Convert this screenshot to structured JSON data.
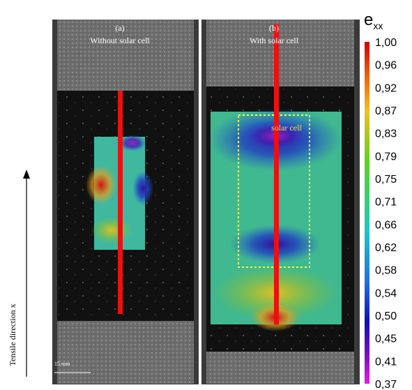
{
  "panels": [
    {
      "label": "(a)",
      "caption": "Without solar cell"
    },
    {
      "label": "(b)",
      "caption": "With solar cell",
      "annotation": "solar cell"
    }
  ],
  "scale_bar": "15 mm",
  "axis_label": "Tensile direction x",
  "colorbar": {
    "title": "e",
    "subscript": "xx",
    "ticks": [
      "1,00",
      "0,96",
      "0,92",
      "0,87",
      "0,83",
      "0,79",
      "0,75",
      "0,71",
      "0,66",
      "0,62",
      "0,58",
      "0,54",
      "0,50",
      "0,45",
      "0,41",
      "0,37"
    ]
  }
}
